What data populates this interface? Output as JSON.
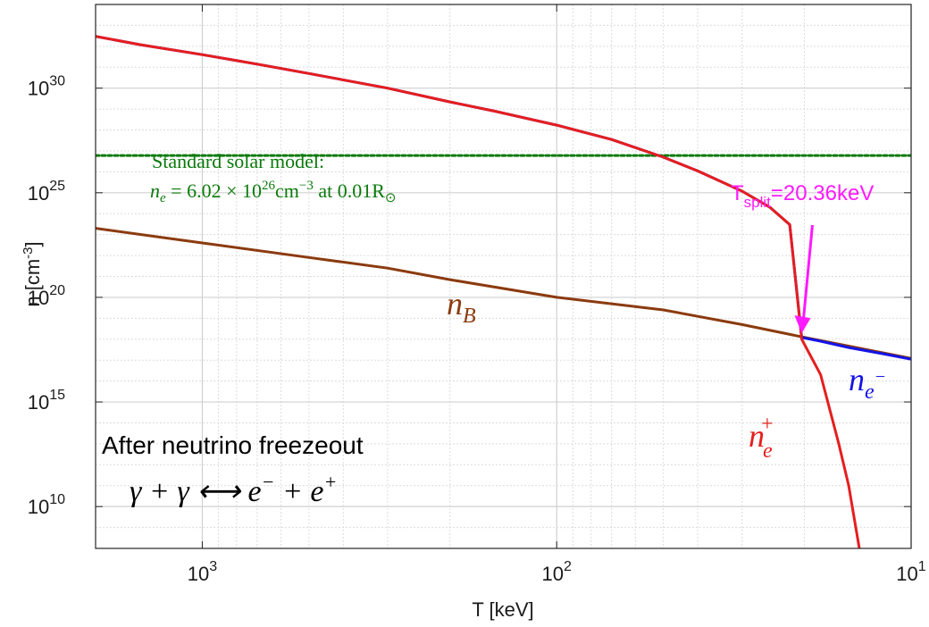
{
  "chart_data": {
    "type": "line",
    "xlabel": "T [keV]",
    "ylabel": "n [cm",
    "ylabel_sup": "-3",
    "ylabel_end": "]",
    "x_scale": "log",
    "x_reversed": true,
    "y_scale": "log",
    "xlim": [
      2000,
      10
    ],
    "ylim": [
      100000000.0,
      1e+34
    ],
    "grid": true,
    "minor_grid": true,
    "x_ticks": [
      {
        "value": 1000,
        "base": "10",
        "exp": "3"
      },
      {
        "value": 100,
        "base": "10",
        "exp": "2"
      },
      {
        "value": 10,
        "base": "10",
        "exp": "1"
      }
    ],
    "y_ticks": [
      {
        "value": 10000000000.0,
        "base": "10",
        "exp": "10"
      },
      {
        "value": 1000000000000000.0,
        "base": "10",
        "exp": "15"
      },
      {
        "value": 1e+20,
        "base": "10",
        "exp": "20"
      },
      {
        "value": 1e+25,
        "base": "10",
        "exp": "25"
      },
      {
        "value": 1e+30,
        "base": "10",
        "exp": "30"
      }
    ],
    "series": [
      {
        "label_main": "n",
        "label_sub": "e",
        "label_sup": "−",
        "color": "#1414e6",
        "x": [
          2000,
          1500,
          1000,
          700,
          500,
          300,
          200,
          150,
          100,
          70,
          50,
          40,
          30,
          25,
          22,
          20.36,
          18,
          15,
          12,
          10
        ],
        "y": [
          3e+32,
          1.2e+32,
          4e+31,
          1.4e+31,
          5e+30,
          1e+30,
          2.2e+29,
          8e+28,
          1.7e+28,
          3.5e+27,
          5e+26,
          1.1e+26,
          1.2e+25,
          2e+24,
          3e+23,
          1.2e+18,
          8e+17,
          4e+17,
          2e+17,
          1.1e+17
        ]
      },
      {
        "label_main": "n",
        "label_sub": "e",
        "label_sup": "+",
        "color": "#e61e1e",
        "x": [
          2000,
          1500,
          1000,
          700,
          500,
          300,
          200,
          150,
          100,
          70,
          50,
          40,
          30,
          25,
          22,
          20.36,
          18,
          16,
          15,
          14
        ],
        "y": [
          3e+32,
          1.2e+32,
          4e+31,
          1.4e+31,
          5e+30,
          1e+30,
          2.2e+29,
          8e+28,
          1.7e+28,
          3.5e+27,
          5e+26,
          1.1e+26,
          1.2e+25,
          2e+24,
          3e+23,
          1e+18,
          2e+16,
          10000000000000.0,
          100000000000.0,
          100000000.0
        ]
      },
      {
        "label_main": "n",
        "label_sub": "B",
        "color": "#8b3a0e",
        "x": [
          2000,
          1000,
          500,
          300,
          200,
          100,
          50,
          30,
          20.36,
          10
        ],
        "y": [
          2e+23,
          4e+22,
          8e+21,
          2.5e+21,
          7e+20,
          1e+20,
          2.5e+19,
          5e+18,
          1.3e+18,
          1.2e+17
        ]
      },
      {
        "label_main": "",
        "color": "#0a7a0a",
        "dashed": true,
        "x": [
          2000,
          10
        ],
        "y": [
          6.02e+26,
          6.02e+26
        ]
      }
    ],
    "annotations": {
      "ssm_line1": "Standard solar model:",
      "ssm_line2_lhs": "n",
      "ssm_line2_sub": "e",
      "ssm_line2_eq": " = 6.02 × 10",
      "ssm_line2_exp": "26",
      "ssm_line2_unit": "cm",
      "ssm_line2_unit_exp": "−3",
      "ssm_line2_tail": " at 0.01R",
      "ssm_line2_sun": "⊙",
      "tsplit_main": "T",
      "tsplit_sub": "split",
      "tsplit_value": "=20.36keV",
      "tsplit_temperature": 20.36,
      "tsplit_color": "#ff1aff",
      "freeze_title": "After neutrino freezeout",
      "reaction": "γ + γ ⟷ e",
      "reaction_sup1": "−",
      "reaction_mid": " + e",
      "reaction_sup2": "+"
    }
  }
}
